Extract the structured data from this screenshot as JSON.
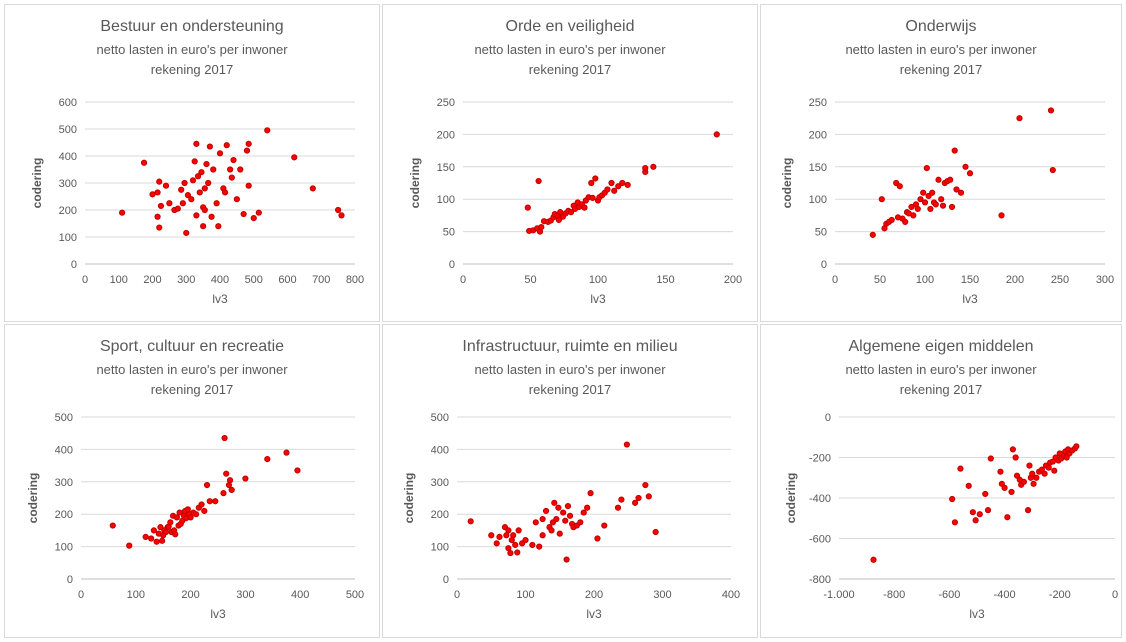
{
  "colors": {
    "marker_fill": "#ff0000",
    "marker_stroke": "#c00000",
    "grid": "#d9d9d9",
    "axis": "#bfbfbf",
    "text": "#595959"
  },
  "subtitle": "netto lasten in euro's per inwoner",
  "subtitle2": "rekening 2017",
  "chart_data": [
    {
      "type": "scatter",
      "title": "Bestuur en ondersteuning",
      "xlabel": "lv3",
      "ylabel": "codering",
      "xlim": [
        0,
        800
      ],
      "ylim": [
        0,
        600
      ],
      "xticks": [
        0,
        100,
        200,
        300,
        400,
        500,
        600,
        700,
        800
      ],
      "yticks": [
        0,
        100,
        200,
        300,
        400,
        500,
        600
      ],
      "xtick_labels": [
        "0",
        "100",
        "200",
        "300",
        "400",
        "500",
        "600",
        "700",
        "800"
      ],
      "ytick_labels": [
        "0",
        "100",
        "200",
        "300",
        "400",
        "500",
        "600"
      ],
      "grid": "horizontal",
      "points": [
        [
          110,
          190
        ],
        [
          175,
          375
        ],
        [
          200,
          258
        ],
        [
          215,
          265
        ],
        [
          215,
          175
        ],
        [
          220,
          305
        ],
        [
          220,
          135
        ],
        [
          225,
          215
        ],
        [
          240,
          290
        ],
        [
          250,
          225
        ],
        [
          265,
          200
        ],
        [
          275,
          205
        ],
        [
          285,
          275
        ],
        [
          290,
          225
        ],
        [
          295,
          300
        ],
        [
          300,
          115
        ],
        [
          305,
          255
        ],
        [
          315,
          240
        ],
        [
          320,
          310
        ],
        [
          325,
          380
        ],
        [
          330,
          445
        ],
        [
          330,
          180
        ],
        [
          335,
          325
        ],
        [
          340,
          265
        ],
        [
          345,
          340
        ],
        [
          350,
          210
        ],
        [
          350,
          140
        ],
        [
          355,
          200
        ],
        [
          355,
          280
        ],
        [
          360,
          370
        ],
        [
          365,
          300
        ],
        [
          370,
          435
        ],
        [
          375,
          175
        ],
        [
          380,
          350
        ],
        [
          390,
          225
        ],
        [
          395,
          140
        ],
        [
          400,
          410
        ],
        [
          410,
          280
        ],
        [
          415,
          265
        ],
        [
          420,
          440
        ],
        [
          430,
          350
        ],
        [
          435,
          320
        ],
        [
          440,
          385
        ],
        [
          450,
          240
        ],
        [
          460,
          350
        ],
        [
          470,
          185
        ],
        [
          480,
          420
        ],
        [
          485,
          290
        ],
        [
          485,
          445
        ],
        [
          500,
          170
        ],
        [
          515,
          190
        ],
        [
          540,
          495
        ],
        [
          620,
          395
        ],
        [
          675,
          280
        ],
        [
          750,
          200
        ],
        [
          760,
          180
        ]
      ]
    },
    {
      "type": "scatter",
      "title": "Orde en veiligheid",
      "xlabel": "lv3",
      "ylabel": "codering",
      "xlim": [
        0,
        200
      ],
      "ylim": [
        0,
        250
      ],
      "xticks": [
        0,
        50,
        100,
        150,
        200
      ],
      "yticks": [
        0,
        50,
        100,
        150,
        200,
        250
      ],
      "xtick_labels": [
        "0",
        "50",
        "100",
        "150",
        "200"
      ],
      "ytick_labels": [
        "0",
        "50",
        "100",
        "150",
        "200",
        "250"
      ],
      "grid": "horizontal",
      "points": [
        [
          48,
          87
        ],
        [
          49,
          51
        ],
        [
          52,
          52
        ],
        [
          55,
          55
        ],
        [
          56,
          128
        ],
        [
          57,
          50
        ],
        [
          58,
          57
        ],
        [
          60,
          66
        ],
        [
          63,
          65
        ],
        [
          65,
          67
        ],
        [
          67,
          72
        ],
        [
          68,
          77
        ],
        [
          70,
          75
        ],
        [
          71,
          68
        ],
        [
          72,
          80
        ],
        [
          74,
          73
        ],
        [
          76,
          78
        ],
        [
          78,
          82
        ],
        [
          80,
          80
        ],
        [
          82,
          90
        ],
        [
          83,
          85
        ],
        [
          85,
          95
        ],
        [
          86,
          88
        ],
        [
          88,
          92
        ],
        [
          90,
          87
        ],
        [
          91,
          98
        ],
        [
          93,
          103
        ],
        [
          95,
          125
        ],
        [
          96,
          102
        ],
        [
          98,
          132
        ],
        [
          100,
          98
        ],
        [
          101,
          103
        ],
        [
          103,
          106
        ],
        [
          105,
          110
        ],
        [
          107,
          115
        ],
        [
          110,
          125
        ],
        [
          112,
          113
        ],
        [
          115,
          120
        ],
        [
          118,
          125
        ],
        [
          122,
          122
        ],
        [
          135,
          142
        ],
        [
          135,
          148
        ],
        [
          141,
          150
        ],
        [
          188,
          200
        ]
      ]
    },
    {
      "type": "scatter",
      "title": "Onderwijs",
      "xlabel": "lv3",
      "ylabel": "codering",
      "xlim": [
        0,
        300
      ],
      "ylim": [
        0,
        250
      ],
      "xticks": [
        0,
        50,
        100,
        150,
        200,
        250,
        300
      ],
      "yticks": [
        0,
        50,
        100,
        150,
        200,
        250
      ],
      "xtick_labels": [
        "0",
        "50",
        "100",
        "150",
        "200",
        "250",
        "300"
      ],
      "ytick_labels": [
        "0",
        "50",
        "100",
        "150",
        "200",
        "250"
      ],
      "grid": "horizontal",
      "points": [
        [
          42,
          45
        ],
        [
          52,
          100
        ],
        [
          55,
          55
        ],
        [
          57,
          62
        ],
        [
          60,
          65
        ],
        [
          63,
          68
        ],
        [
          68,
          125
        ],
        [
          70,
          72
        ],
        [
          72,
          120
        ],
        [
          75,
          70
        ],
        [
          78,
          65
        ],
        [
          80,
          80
        ],
        [
          82,
          78
        ],
        [
          85,
          88
        ],
        [
          87,
          75
        ],
        [
          90,
          92
        ],
        [
          92,
          85
        ],
        [
          95,
          100
        ],
        [
          98,
          110
        ],
        [
          100,
          95
        ],
        [
          102,
          148
        ],
        [
          104,
          105
        ],
        [
          106,
          85
        ],
        [
          108,
          110
        ],
        [
          110,
          95
        ],
        [
          112,
          92
        ],
        [
          115,
          130
        ],
        [
          118,
          100
        ],
        [
          120,
          90
        ],
        [
          122,
          125
        ],
        [
          125,
          128
        ],
        [
          128,
          130
        ],
        [
          130,
          88
        ],
        [
          133,
          175
        ],
        [
          135,
          115
        ],
        [
          140,
          110
        ],
        [
          145,
          150
        ],
        [
          150,
          140
        ],
        [
          185,
          75
        ],
        [
          205,
          225
        ],
        [
          240,
          237
        ],
        [
          242,
          145
        ]
      ]
    },
    {
      "type": "scatter",
      "title": "Sport, cultuur en recreatie",
      "xlabel": "lv3",
      "ylabel": "codering",
      "xlim": [
        0,
        500
      ],
      "ylim": [
        0,
        500
      ],
      "xticks": [
        0,
        100,
        200,
        300,
        400,
        500
      ],
      "yticks": [
        0,
        100,
        200,
        300,
        400,
        500
      ],
      "xtick_labels": [
        "0",
        "100",
        "200",
        "300",
        "400",
        "500"
      ],
      "ytick_labels": [
        "0",
        "100",
        "200",
        "300",
        "400",
        "500"
      ],
      "grid": "horizontal",
      "points": [
        [
          58,
          165
        ],
        [
          88,
          103
        ],
        [
          118,
          130
        ],
        [
          128,
          125
        ],
        [
          133,
          150
        ],
        [
          138,
          115
        ],
        [
          142,
          140
        ],
        [
          145,
          160
        ],
        [
          148,
          118
        ],
        [
          150,
          135
        ],
        [
          152,
          150
        ],
        [
          155,
          145
        ],
        [
          158,
          160
        ],
        [
          160,
          162
        ],
        [
          163,
          175
        ],
        [
          165,
          145
        ],
        [
          168,
          195
        ],
        [
          170,
          150
        ],
        [
          172,
          138
        ],
        [
          175,
          190
        ],
        [
          178,
          165
        ],
        [
          180,
          205
        ],
        [
          182,
          170
        ],
        [
          185,
          180
        ],
        [
          188,
          195
        ],
        [
          190,
          210
        ],
        [
          192,
          188
        ],
        [
          195,
          215
        ],
        [
          198,
          200
        ],
        [
          200,
          190
        ],
        [
          205,
          205
        ],
        [
          210,
          200
        ],
        [
          215,
          220
        ],
        [
          220,
          230
        ],
        [
          225,
          210
        ],
        [
          230,
          290
        ],
        [
          235,
          240
        ],
        [
          245,
          240
        ],
        [
          260,
          265
        ],
        [
          262,
          435
        ],
        [
          265,
          325
        ],
        [
          270,
          290
        ],
        [
          272,
          305
        ],
        [
          275,
          275
        ],
        [
          300,
          310
        ],
        [
          340,
          370
        ],
        [
          375,
          390
        ],
        [
          395,
          335
        ]
      ]
    },
    {
      "type": "scatter",
      "title": "Infrastructuur, ruimte en milieu",
      "xlabel": "lv3",
      "ylabel": "codering",
      "xlim": [
        0,
        400
      ],
      "ylim": [
        0,
        500
      ],
      "xticks": [
        0,
        100,
        200,
        300,
        400
      ],
      "yticks": [
        0,
        100,
        200,
        300,
        400,
        500
      ],
      "xtick_labels": [
        "0",
        "100",
        "200",
        "300",
        "400"
      ],
      "ytick_labels": [
        "0",
        "100",
        "200",
        "300",
        "400",
        "500"
      ],
      "grid": "horizontal",
      "points": [
        [
          20,
          178
        ],
        [
          50,
          135
        ],
        [
          58,
          110
        ],
        [
          62,
          130
        ],
        [
          70,
          160
        ],
        [
          72,
          135
        ],
        [
          75,
          150
        ],
        [
          75,
          95
        ],
        [
          78,
          80
        ],
        [
          80,
          120
        ],
        [
          82,
          135
        ],
        [
          85,
          105
        ],
        [
          88,
          82
        ],
        [
          90,
          150
        ],
        [
          95,
          110
        ],
        [
          100,
          120
        ],
        [
          110,
          105
        ],
        [
          115,
          175
        ],
        [
          120,
          100
        ],
        [
          125,
          135
        ],
        [
          125,
          185
        ],
        [
          130,
          210
        ],
        [
          135,
          160
        ],
        [
          138,
          150
        ],
        [
          140,
          175
        ],
        [
          142,
          235
        ],
        [
          145,
          185
        ],
        [
          148,
          220
        ],
        [
          150,
          140
        ],
        [
          155,
          205
        ],
        [
          158,
          180
        ],
        [
          160,
          60
        ],
        [
          162,
          225
        ],
        [
          165,
          195
        ],
        [
          168,
          170
        ],
        [
          170,
          160
        ],
        [
          175,
          165
        ],
        [
          180,
          175
        ],
        [
          185,
          205
        ],
        [
          190,
          220
        ],
        [
          195,
          265
        ],
        [
          205,
          125
        ],
        [
          215,
          165
        ],
        [
          235,
          220
        ],
        [
          240,
          245
        ],
        [
          248,
          415
        ],
        [
          260,
          235
        ],
        [
          265,
          250
        ],
        [
          275,
          290
        ],
        [
          280,
          255
        ],
        [
          290,
          145
        ]
      ]
    },
    {
      "type": "scatter",
      "title": "Algemene eigen middelen",
      "xlabel": "lv3",
      "ylabel": "codering",
      "xlim": [
        -1000,
        0
      ],
      "ylim": [
        -800,
        0
      ],
      "xticks": [
        -1000,
        -800,
        -600,
        -400,
        -200,
        0
      ],
      "yticks": [
        -800,
        -600,
        -400,
        -200,
        0
      ],
      "xtick_labels": [
        "-1.000",
        "-800",
        "-600",
        "-400",
        "-200",
        "0"
      ],
      "ytick_labels": [
        "-800",
        "-600",
        "-400",
        "-200",
        "0"
      ],
      "grid": "horizontal",
      "points": [
        [
          -875,
          -705
        ],
        [
          -590,
          -405
        ],
        [
          -580,
          -520
        ],
        [
          -560,
          -255
        ],
        [
          -530,
          -340
        ],
        [
          -515,
          -470
        ],
        [
          -505,
          -510
        ],
        [
          -490,
          -480
        ],
        [
          -470,
          -380
        ],
        [
          -460,
          -460
        ],
        [
          -450,
          -205
        ],
        [
          -415,
          -270
        ],
        [
          -410,
          -330
        ],
        [
          -400,
          -350
        ],
        [
          -390,
          -495
        ],
        [
          -375,
          -370
        ],
        [
          -370,
          -160
        ],
        [
          -360,
          -200
        ],
        [
          -355,
          -290
        ],
        [
          -345,
          -310
        ],
        [
          -340,
          -335
        ],
        [
          -330,
          -320
        ],
        [
          -315,
          -460
        ],
        [
          -310,
          -240
        ],
        [
          -305,
          -300
        ],
        [
          -300,
          -280
        ],
        [
          -295,
          -330
        ],
        [
          -285,
          -300
        ],
        [
          -275,
          -270
        ],
        [
          -265,
          -260
        ],
        [
          -255,
          -280
        ],
        [
          -250,
          -240
        ],
        [
          -240,
          -250
        ],
        [
          -235,
          -225
        ],
        [
          -225,
          -220
        ],
        [
          -220,
          -265
        ],
        [
          -215,
          -200
        ],
        [
          -205,
          -215
        ],
        [
          -200,
          -180
        ],
        [
          -195,
          -205
        ],
        [
          -185,
          -190
        ],
        [
          -180,
          -170
        ],
        [
          -175,
          -200
        ],
        [
          -170,
          -160
        ],
        [
          -165,
          -180
        ],
        [
          -155,
          -165
        ],
        [
          -145,
          -155
        ],
        [
          -140,
          -145
        ]
      ]
    }
  ]
}
